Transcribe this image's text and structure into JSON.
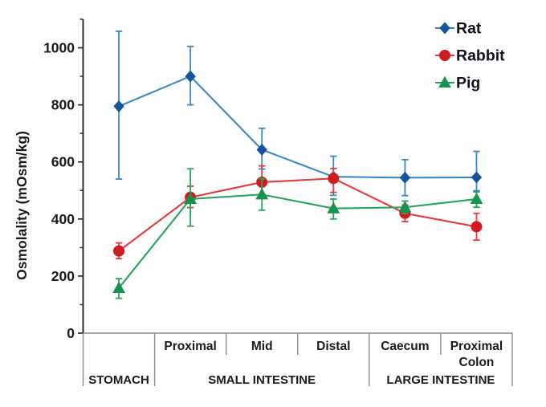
{
  "colors": {
    "background": "#ffffff",
    "text": "#1b1b1b",
    "legend_text": "#14141e",
    "axis_line": "#2a2a2a",
    "table_line": "#8a8a8a",
    "rat_marker": "#15549a",
    "rat_line": "#3a88c8",
    "rabbit_marker": "#d01b1f",
    "rabbit_line": "#e73a3d",
    "pig_marker": "#17934d",
    "pig_line": "#26a35d"
  },
  "chart_data": {
    "type": "line",
    "title": "",
    "xlabel": "",
    "ylabel": "Osmolality (mOsm/kg)",
    "ylim": [
      0,
      1100
    ],
    "yticks_major": [
      0,
      200,
      400,
      600,
      800,
      1000
    ],
    "yticks_minor": [
      100,
      300,
      500,
      700,
      900,
      1100
    ],
    "grid": false,
    "categories": [
      "Stomach",
      "Proximal",
      "Mid",
      "Distal",
      "Caecum",
      "Proximal Colon"
    ],
    "column_labels": [
      "",
      "Proximal",
      "Mid",
      "Distal",
      "Caecum",
      "Proximal\nColon"
    ],
    "groups": [
      {
        "label": "STOMACH",
        "span": [
          0,
          1
        ]
      },
      {
        "label": "SMALL INTESTINE",
        "span": [
          1,
          4
        ]
      },
      {
        "label": "LARGE INTESTINE",
        "span": [
          4,
          6
        ]
      }
    ],
    "series": [
      {
        "name": "Rat",
        "marker": "diamond",
        "marker_color": "#15549a",
        "line_color": "#3a88c8",
        "values": [
          795,
          900,
          643,
          548,
          545,
          546
        ],
        "err_low": [
          540,
          800,
          575,
          483,
          482,
          495
        ],
        "err_high": [
          1058,
          1005,
          718,
          620,
          608,
          637
        ]
      },
      {
        "name": "Rabbit",
        "marker": "circle",
        "marker_color": "#d01b1f",
        "line_color": "#e73a3d",
        "values": [
          288,
          476,
          529,
          542,
          420,
          373
        ],
        "err_low": [
          261,
          440,
          472,
          493,
          391,
          326
        ],
        "err_high": [
          316,
          515,
          586,
          577,
          449,
          420
        ]
      },
      {
        "name": "Pig",
        "marker": "triangle",
        "marker_color": "#17934d",
        "line_color": "#26a35d",
        "values": [
          158,
          470,
          486,
          437,
          441,
          470
        ],
        "err_low": [
          122,
          375,
          431,
          400,
          419,
          441
        ],
        "err_high": [
          191,
          576,
          541,
          470,
          463,
          499
        ]
      }
    ],
    "legend": {
      "position": "top-right",
      "items": [
        "Rat",
        "Rabbit",
        "Pig"
      ]
    }
  }
}
